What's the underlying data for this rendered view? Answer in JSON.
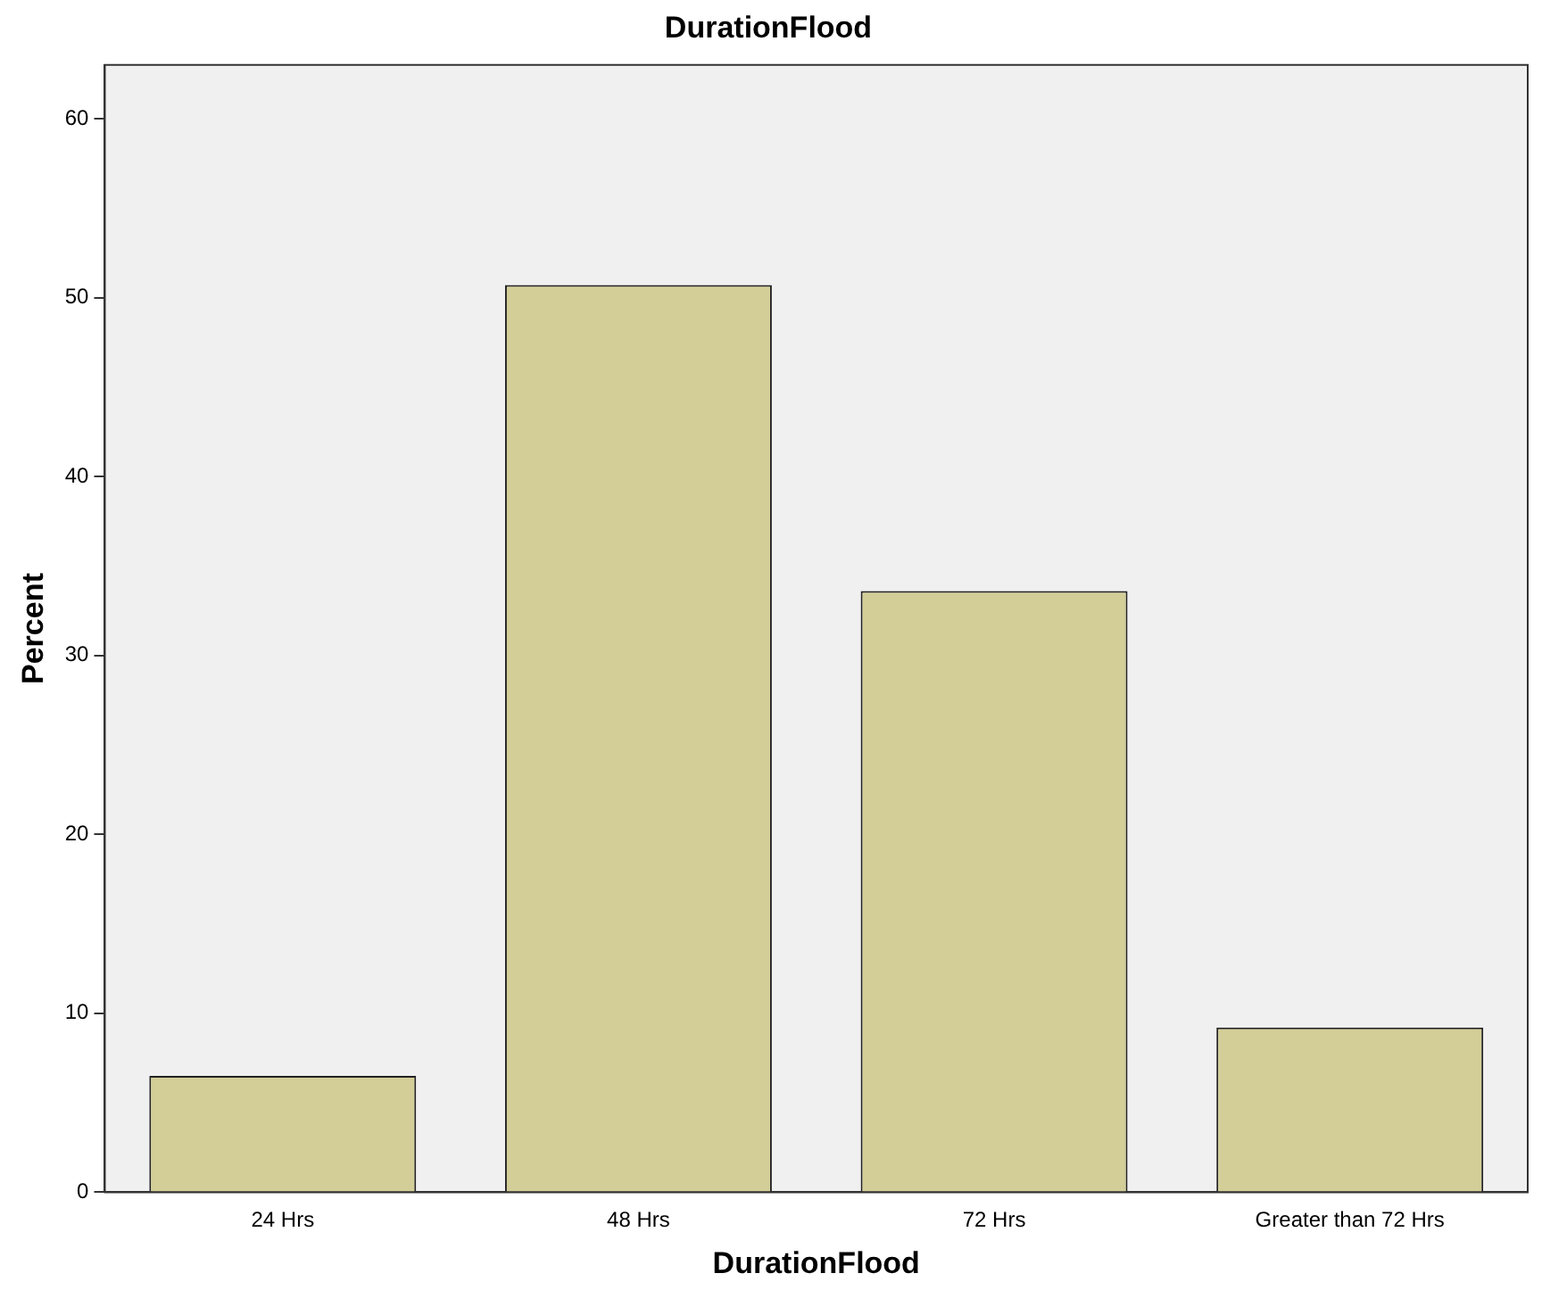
{
  "chart_data": {
    "type": "bar",
    "title": "DurationFlood",
    "xlabel": "DurationFlood",
    "ylabel": "Percent",
    "categories": [
      "24 Hrs",
      "48 Hrs",
      "72 Hrs",
      "Greater than 72 Hrs"
    ],
    "values": [
      6.5,
      50.7,
      33.6,
      9.2
    ],
    "color": "#d3ce97",
    "ylim": [
      0,
      63
    ],
    "yticks": [
      0,
      10,
      20,
      30,
      40,
      50,
      60
    ],
    "grid": false,
    "legend": false
  }
}
